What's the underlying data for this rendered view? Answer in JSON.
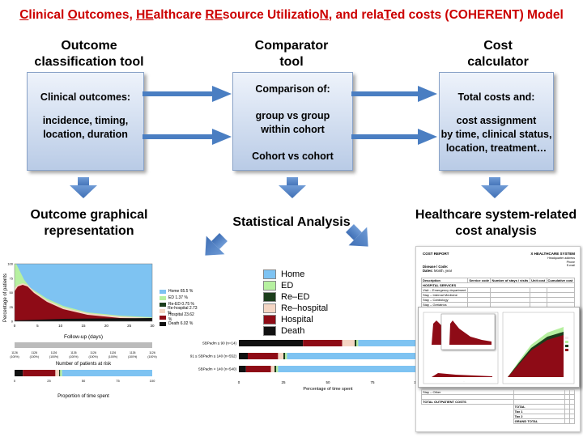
{
  "title_parts": [
    {
      "text": "C",
      "u": true
    },
    {
      "text": "linical ",
      "u": false
    },
    {
      "text": "O",
      "u": true
    },
    {
      "text": "utcomes, ",
      "u": false
    },
    {
      "text": "HE",
      "u": true
    },
    {
      "text": "althcare ",
      "u": false
    },
    {
      "text": "RE",
      "u": true
    },
    {
      "text": "source Utilizatio",
      "u": false
    },
    {
      "text": "N",
      "u": true
    },
    {
      "text": ", and rela",
      "u": false
    },
    {
      "text": "T",
      "u": true
    },
    {
      "text": "ed costs (COHERENT) Model",
      "u": false
    }
  ],
  "columns": {
    "col1_header_1": "Outcome",
    "col1_header_2": "classification tool",
    "col2_header_1": "Comparator",
    "col2_header_2": "tool",
    "col3_header_1": "Cost",
    "col3_header_2": "calculator"
  },
  "boxes": {
    "box1_line1": "Clinical outcomes:",
    "box1_line2": "incidence, timing,",
    "box1_line3": "location, duration",
    "box2_line1": "Comparison of:",
    "box2_line2": "group vs group",
    "box2_line3": "within cohort",
    "box2_line4": "Cohort vs cohort",
    "box3_line1": "Total costs and:",
    "box3_line2": "cost assignment",
    "box3_line3": "by time, clinical status,",
    "box3_line4": "location, treatment…"
  },
  "outputs": {
    "out1_line1": "Outcome graphical",
    "out1_line2": "representation",
    "out2": "Statistical Analysis",
    "out3_line1": "Healthcare system-related",
    "out3_line2": "cost analysis"
  },
  "colors": {
    "home": "#7ec3f2",
    "ed": "#b6f0a0",
    "reed": "#1b3d1b",
    "rehospital": "#f4d6c4",
    "hospital": "#8e0b16",
    "death": "#111111",
    "box_arrow": "#4a7ec2"
  },
  "left_chart": {
    "ylabel": "Percentage of patients",
    "xlabel": "Follow-up (days)",
    "yticks": [
      "0",
      "25",
      "50",
      "75",
      "100"
    ],
    "xticks": [
      "0",
      "5",
      "10",
      "15",
      "20",
      "25",
      "30"
    ],
    "legend": [
      "Home 65.5 %",
      "ED 1.37 %",
      "Re-ED 0.75 %",
      "Re-hospital 2.73 %",
      "Hospital 23.62 %",
      "Death 6.02 %"
    ],
    "risk_label": "Number of patients at risk",
    "risk_values": [
      "1126",
      "1126",
      "1126",
      "1126",
      "1126",
      "1126",
      "1126",
      "1126"
    ],
    "risk_pcts": [
      "(100%)",
      "(100%)",
      "(100%)",
      "(100%)",
      "(100%)",
      "(100%)",
      "(100%)",
      "(100%)"
    ],
    "prop_label": "Proportion of time spent",
    "prop_ticks": [
      "0",
      "25",
      "50",
      "75",
      "100"
    ]
  },
  "mid_chart": {
    "legend": [
      "Home",
      "ED",
      "Re–ED",
      "Re–hospital",
      "Hospital",
      "Death"
    ],
    "rows": [
      "SBPadm ≤ 90 (n=14)",
      "91 ≤ SBPadm ≤ 140 (n=552)",
      "SBPadm > 140 (n=540)"
    ],
    "xlabel": "Percentage of time spent",
    "xticks": [
      "0",
      "25",
      "50",
      "75",
      "100"
    ]
  },
  "cost_report": {
    "title": "COST REPORT",
    "org": "X HEALTHCARE SYSTEM",
    "org_lines": [
      "Headquarter address",
      "Phone",
      "E-mail"
    ],
    "disease": "Disease / Code:",
    "dates": "Dates:",
    "dates_val": "Month, year",
    "headers": [
      "Description",
      "Service code",
      "Number of stays / visits",
      "Unit cost",
      "Cumulative cost"
    ],
    "section": "HOSPITAL SERVICES",
    "items": [
      "Visit – Emergency department",
      "Stay – Internal Medicine",
      "Stay – Cardiology",
      "Stay – Geriatrics"
    ],
    "other": "Stay – Other",
    "outpatient": "TOTAL OUTPATIENT COSTS",
    "totals": [
      "TOTAL",
      "Tax 1",
      "Tax 2",
      "GRAND TOTAL"
    ]
  }
}
